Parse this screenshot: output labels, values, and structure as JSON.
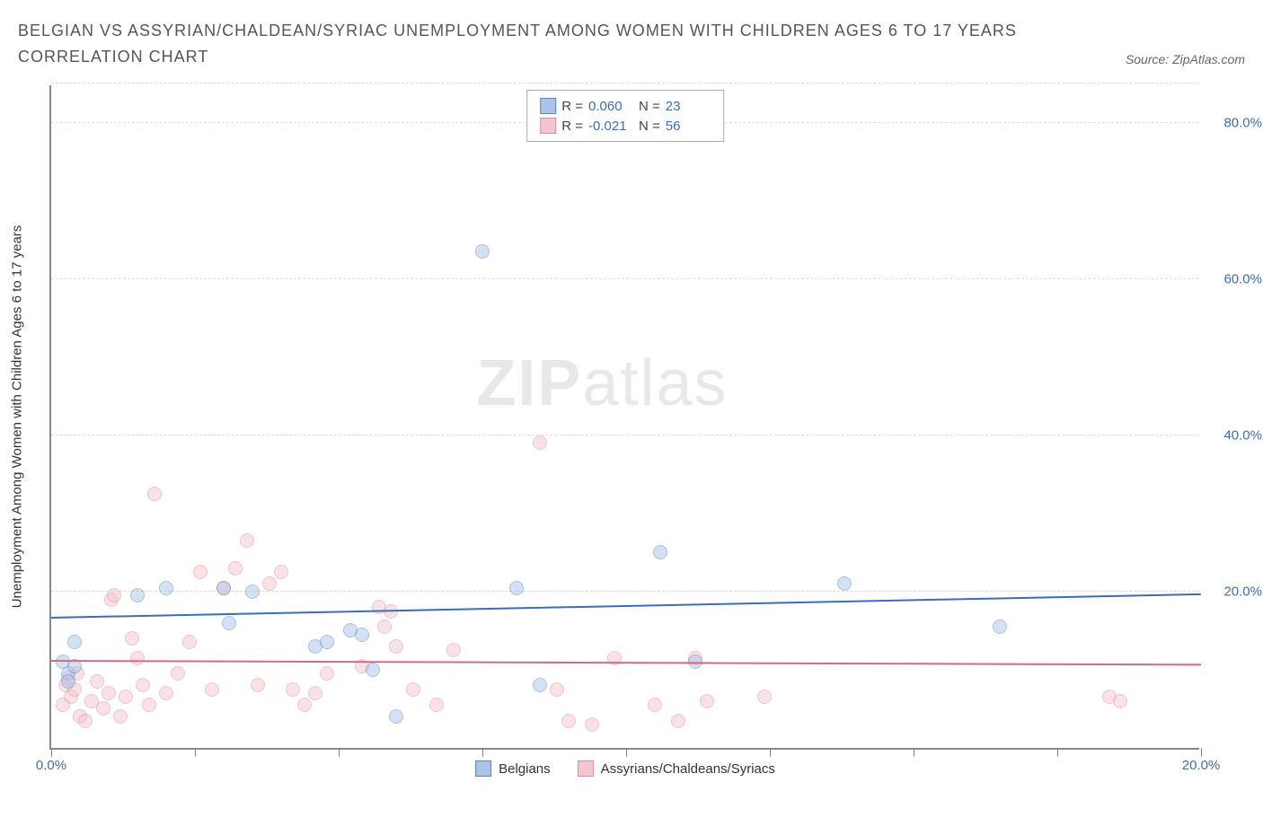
{
  "title": "BELGIAN VS ASSYRIAN/CHALDEAN/SYRIAC UNEMPLOYMENT AMONG WOMEN WITH CHILDREN AGES 6 TO 17 YEARS CORRELATION CHART",
  "source": "Source: ZipAtlas.com",
  "watermark_a": "ZIP",
  "watermark_b": "atlas",
  "chart": {
    "type": "scatter",
    "background_color": "#ffffff",
    "grid_color": "#dddddd",
    "axis_color": "#888888",
    "tick_label_color": "#3b6db4",
    "axis_label_color": "#333333",
    "label_fontsize": 15,
    "title_fontsize": 18,
    "xlim": [
      0,
      20
    ],
    "ylim": [
      0,
      85
    ],
    "x_ticks": [
      0,
      2.5,
      5,
      7.5,
      10,
      12.5,
      15,
      17.5,
      20
    ],
    "x_tick_labels": {
      "0": "0.0%",
      "20": "20.0%"
    },
    "y_ticks": [
      20,
      40,
      60,
      80
    ],
    "y_tick_labels": {
      "20": "20.0%",
      "40": "40.0%",
      "60": "60.0%",
      "80": "80.0%"
    },
    "y_axis_label": "Unemployment Among Women with Children Ages 6 to 17 years",
    "marker_radius": 8,
    "marker_opacity": 0.5,
    "series": {
      "belgians": {
        "label": "Belgians",
        "fill_color": "#a9c4e8",
        "stroke_color": "#5a86c4",
        "line_color": "#3b6db4",
        "R_label": "R =",
        "R_value": "0.060",
        "N_label": "N =",
        "N_value": "23",
        "trend": {
          "x1": 0,
          "y1": 16.5,
          "x2": 20,
          "y2": 19.5
        },
        "points": [
          [
            0.2,
            11
          ],
          [
            0.3,
            9.5
          ],
          [
            0.3,
            8.5
          ],
          [
            0.4,
            10.5
          ],
          [
            0.4,
            13.5
          ],
          [
            1.5,
            19.5
          ],
          [
            2.0,
            20.5
          ],
          [
            3.0,
            20.5
          ],
          [
            3.1,
            16.0
          ],
          [
            3.5,
            20.0
          ],
          [
            4.6,
            13.0
          ],
          [
            4.8,
            13.5
          ],
          [
            5.2,
            15.0
          ],
          [
            5.4,
            14.5
          ],
          [
            5.6,
            10.0
          ],
          [
            6.0,
            4.0
          ],
          [
            7.5,
            63.5
          ],
          [
            8.1,
            20.5
          ],
          [
            8.5,
            8.0
          ],
          [
            10.6,
            25.0
          ],
          [
            11.2,
            11.0
          ],
          [
            13.8,
            21.0
          ],
          [
            16.5,
            15.5
          ]
        ]
      },
      "acs": {
        "label": "Assyrians/Chaldeans/Syriacs",
        "fill_color": "#f3c6ce",
        "stroke_color": "#e08b9e",
        "line_color": "#d46a8a",
        "R_label": "R =",
        "R_value": "-0.021",
        "N_label": "N =",
        "N_value": "56",
        "trend": {
          "x1": 0,
          "y1": 11.0,
          "x2": 20,
          "y2": 10.5
        },
        "points": [
          [
            0.2,
            5.5
          ],
          [
            0.25,
            8.0
          ],
          [
            0.3,
            9.0
          ],
          [
            0.35,
            6.5
          ],
          [
            0.4,
            7.5
          ],
          [
            0.45,
            9.5
          ],
          [
            0.5,
            4.0
          ],
          [
            0.6,
            3.5
          ],
          [
            0.7,
            6.0
          ],
          [
            0.8,
            8.5
          ],
          [
            0.9,
            5.0
          ],
          [
            1.0,
            7.0
          ],
          [
            1.05,
            19.0
          ],
          [
            1.1,
            19.5
          ],
          [
            1.2,
            4.0
          ],
          [
            1.3,
            6.5
          ],
          [
            1.4,
            14.0
          ],
          [
            1.5,
            11.5
          ],
          [
            1.6,
            8.0
          ],
          [
            1.7,
            5.5
          ],
          [
            1.8,
            32.5
          ],
          [
            2.0,
            7.0
          ],
          [
            2.2,
            9.5
          ],
          [
            2.4,
            13.5
          ],
          [
            2.6,
            22.5
          ],
          [
            2.8,
            7.5
          ],
          [
            3.0,
            20.5
          ],
          [
            3.2,
            23.0
          ],
          [
            3.4,
            26.5
          ],
          [
            3.6,
            8.0
          ],
          [
            3.8,
            21.0
          ],
          [
            4.0,
            22.5
          ],
          [
            4.2,
            7.5
          ],
          [
            4.4,
            5.5
          ],
          [
            4.6,
            7.0
          ],
          [
            4.8,
            9.5
          ],
          [
            5.4,
            10.5
          ],
          [
            5.7,
            18.0
          ],
          [
            5.8,
            15.5
          ],
          [
            5.9,
            17.5
          ],
          [
            6.0,
            13.0
          ],
          [
            6.3,
            7.5
          ],
          [
            6.7,
            5.5
          ],
          [
            7.0,
            12.5
          ],
          [
            8.5,
            39.0
          ],
          [
            8.8,
            7.5
          ],
          [
            9.0,
            3.5
          ],
          [
            9.4,
            3.0
          ],
          [
            9.8,
            11.5
          ],
          [
            10.5,
            5.5
          ],
          [
            10.9,
            3.5
          ],
          [
            11.2,
            11.5
          ],
          [
            11.4,
            6.0
          ],
          [
            12.4,
            6.5
          ],
          [
            18.4,
            6.5
          ],
          [
            18.6,
            6.0
          ]
        ]
      }
    }
  }
}
